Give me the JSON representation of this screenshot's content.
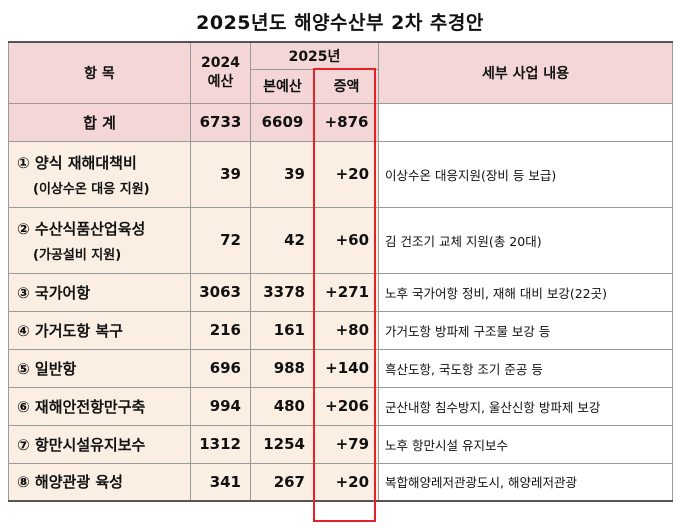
{
  "title": "2025년도 해양수산부 2차 추경안",
  "header": {
    "item": "항 목",
    "budget2024_line1": "2024",
    "budget2024_line2": "예산",
    "year2025": "2025년",
    "main_budget": "본예산",
    "increase": "증액",
    "details": "세부 사업 내용"
  },
  "total": {
    "label": "합 계",
    "budget2024": "6733",
    "main": "6609",
    "increase": "+876",
    "detail": ""
  },
  "rows": [
    {
      "label": "① 양식 재해대책비",
      "sub": "(이상수온 대응 지원)",
      "budget2024": "39",
      "main": "39",
      "increase": "+20",
      "detail": "이상수온 대응지원(장비 등 보급)"
    },
    {
      "label": "② 수산식품산업육성",
      "sub": "(가공설비 지원)",
      "budget2024": "72",
      "main": "42",
      "increase": "+60",
      "detail": "김 건조기 교체 지원(총 20대)"
    },
    {
      "label": "③ 국가어항",
      "sub": "",
      "budget2024": "3063",
      "main": "3378",
      "increase": "+271",
      "detail": "노후 국가어항 정비, 재해 대비 보강(22곳)"
    },
    {
      "label": "④ 가거도항 복구",
      "sub": "",
      "budget2024": "216",
      "main": "161",
      "increase": "+80",
      "detail": "가거도항 방파제 구조물 보강 등"
    },
    {
      "label": "⑤ 일반항",
      "sub": "",
      "budget2024": "696",
      "main": "988",
      "increase": "+140",
      "detail": "흑산도항, 국도항 조기 준공 등"
    },
    {
      "label": "⑥ 재해안전항만구축",
      "sub": "",
      "budget2024": "994",
      "main": "480",
      "increase": "+206",
      "detail": "군산내항 침수방지, 울산신항 방파제 보강"
    },
    {
      "label": "⑦ 항만시설유지보수",
      "sub": "",
      "budget2024": "1312",
      "main": "1254",
      "increase": "+79",
      "detail": "노후 항만시설 유지보수"
    },
    {
      "label": "⑧ 해양관광 육성",
      "sub": "",
      "budget2024": "341",
      "main": "267",
      "increase": "+20",
      "detail": "복합해양레저관광도시, 해양레저관광"
    }
  ]
}
